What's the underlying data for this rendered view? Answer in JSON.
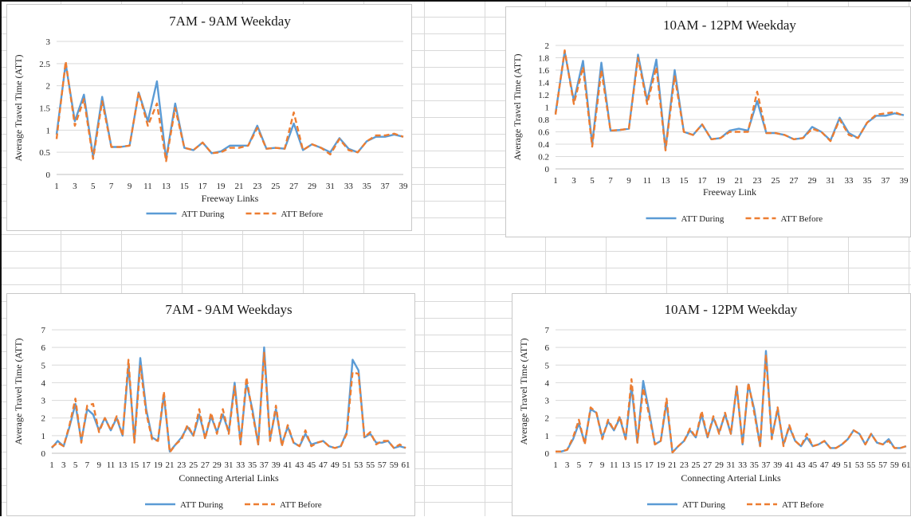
{
  "colors": {
    "during": "#5b9bd5",
    "before": "#ed7d31",
    "grid": "#d9d9d9"
  },
  "chart_data": [
    {
      "id": "c1",
      "type": "line",
      "title": "7AM - 9AM Weekday",
      "xlabel": "Freeway Links",
      "ylabel": "Average Travel Time (ATT)",
      "ylim": [
        0,
        3
      ],
      "yticks": [
        "0",
        "0.5",
        "1",
        "1.5",
        "2",
        "2.5",
        "3"
      ],
      "x_tick_labels": [
        "1",
        "3",
        "5",
        "7",
        "9",
        "11",
        "13",
        "15",
        "17",
        "19",
        "21",
        "23",
        "25",
        "27",
        "29",
        "31",
        "33",
        "35",
        "37",
        "39"
      ],
      "legend_position": "bottom",
      "x": [
        1,
        2,
        3,
        4,
        5,
        6,
        7,
        8,
        9,
        10,
        11,
        12,
        13,
        14,
        15,
        16,
        17,
        18,
        19,
        20,
        21,
        22,
        23,
        24,
        25,
        26,
        27,
        28,
        29,
        30,
        31,
        32,
        33,
        34,
        35,
        36,
        37,
        38,
        39
      ],
      "series": [
        {
          "name": "ATT During",
          "style": "solid",
          "values": [
            0.9,
            2.5,
            1.2,
            1.8,
            0.4,
            1.75,
            0.62,
            0.62,
            0.65,
            1.85,
            1.2,
            2.1,
            0.35,
            1.6,
            0.6,
            0.55,
            0.72,
            0.48,
            0.52,
            0.65,
            0.65,
            0.65,
            1.1,
            0.58,
            0.6,
            0.58,
            1.15,
            0.55,
            0.68,
            0.6,
            0.5,
            0.82,
            0.58,
            0.5,
            0.75,
            0.85,
            0.85,
            0.9,
            0.85
          ]
        },
        {
          "name": "ATT Before",
          "style": "dashed",
          "values": [
            0.8,
            2.55,
            1.1,
            1.7,
            0.35,
            1.65,
            0.62,
            0.62,
            0.65,
            1.85,
            1.1,
            1.6,
            0.3,
            1.5,
            0.6,
            0.55,
            0.72,
            0.48,
            0.5,
            0.6,
            0.6,
            0.65,
            1.05,
            0.58,
            0.6,
            0.58,
            1.4,
            0.55,
            0.68,
            0.6,
            0.45,
            0.8,
            0.55,
            0.5,
            0.75,
            0.88,
            0.88,
            0.92,
            0.85
          ]
        }
      ]
    },
    {
      "id": "c2",
      "type": "line",
      "title": "10AM - 12PM Weekday",
      "xlabel": "Freeway Link",
      "ylabel": "Average Travel Time (ATT)",
      "ylim": [
        0,
        2
      ],
      "yticks": [
        "0",
        "0.2",
        "0.4",
        "0.6",
        "0.8",
        "1",
        "1.2",
        "1.4",
        "1.6",
        "1.8",
        "2"
      ],
      "x_tick_labels": [
        "1",
        "3",
        "5",
        "7",
        "9",
        "11",
        "13",
        "15",
        "17",
        "19",
        "21",
        "23",
        "25",
        "27",
        "29",
        "31",
        "33",
        "35",
        "37",
        "39"
      ],
      "legend_position": "bottom",
      "x": [
        1,
        2,
        3,
        4,
        5,
        6,
        7,
        8,
        9,
        10,
        11,
        12,
        13,
        14,
        15,
        16,
        17,
        18,
        19,
        20,
        21,
        22,
        23,
        24,
        25,
        26,
        27,
        28,
        29,
        30,
        31,
        32,
        33,
        34,
        35,
        36,
        37,
        38,
        39
      ],
      "series": [
        {
          "name": "ATT During",
          "style": "solid",
          "values": [
            0.9,
            1.9,
            1.1,
            1.75,
            0.4,
            1.72,
            0.62,
            0.63,
            0.65,
            1.85,
            1.1,
            1.77,
            0.32,
            1.6,
            0.6,
            0.55,
            0.72,
            0.48,
            0.5,
            0.62,
            0.65,
            0.62,
            1.1,
            0.58,
            0.58,
            0.55,
            0.48,
            0.5,
            0.68,
            0.6,
            0.46,
            0.83,
            0.58,
            0.5,
            0.75,
            0.86,
            0.86,
            0.9,
            0.87
          ]
        },
        {
          "name": "ATT Before",
          "style": "dashed",
          "values": [
            0.88,
            1.92,
            1.05,
            1.65,
            0.36,
            1.6,
            0.62,
            0.63,
            0.65,
            1.8,
            1.05,
            1.65,
            0.3,
            1.5,
            0.6,
            0.55,
            0.72,
            0.48,
            0.5,
            0.6,
            0.6,
            0.6,
            1.25,
            0.58,
            0.58,
            0.55,
            0.48,
            0.5,
            0.65,
            0.6,
            0.45,
            0.8,
            0.55,
            0.5,
            0.75,
            0.88,
            0.9,
            0.92,
            0.86
          ]
        }
      ]
    },
    {
      "id": "c3",
      "type": "line",
      "title": "7AM - 9AM Weekdays",
      "xlabel": "Connecting Arterial Links",
      "ylabel": "Average Travel Time (ATT)",
      "ylim": [
        0,
        7
      ],
      "yticks": [
        "0",
        "1",
        "2",
        "3",
        "4",
        "5",
        "6",
        "7"
      ],
      "x_tick_labels": [
        "1",
        "3",
        "5",
        "7",
        "9",
        "11",
        "13",
        "15",
        "17",
        "19",
        "21",
        "23",
        "25",
        "27",
        "29",
        "31",
        "33",
        "35",
        "37",
        "39",
        "41",
        "43",
        "45",
        "47",
        "49",
        "51",
        "53",
        "55",
        "57",
        "59",
        "61"
      ],
      "legend_position": "bottom",
      "x": [
        1,
        2,
        3,
        4,
        5,
        6,
        7,
        8,
        9,
        10,
        11,
        12,
        13,
        14,
        15,
        16,
        17,
        18,
        19,
        20,
        21,
        22,
        23,
        24,
        25,
        26,
        27,
        28,
        29,
        30,
        31,
        32,
        33,
        34,
        35,
        36,
        37,
        38,
        39,
        40,
        41,
        42,
        43,
        44,
        45,
        46,
        47,
        48,
        49,
        50,
        51,
        52,
        53,
        54,
        55,
        56,
        57,
        58,
        59,
        60,
        61
      ],
      "series": [
        {
          "name": "ATT During",
          "style": "solid",
          "values": [
            0.3,
            0.7,
            0.4,
            1.5,
            2.8,
            0.7,
            2.5,
            2.2,
            1.3,
            2.0,
            1.3,
            2.0,
            1.0,
            5.0,
            0.7,
            5.4,
            2.5,
            0.9,
            0.7,
            3.3,
            0.1,
            0.5,
            0.9,
            1.5,
            1.0,
            2.2,
            0.9,
            2.1,
            1.2,
            2.2,
            1.2,
            4.0,
            0.6,
            4.0,
            2.5,
            0.5,
            6.0,
            0.8,
            2.5,
            0.5,
            1.5,
            0.6,
            0.4,
            1.1,
            0.5,
            0.6,
            0.7,
            0.4,
            0.3,
            0.4,
            1.2,
            5.3,
            4.7,
            0.9,
            1.1,
            0.6,
            0.6,
            0.7,
            0.3,
            0.4,
            0.3
          ]
        },
        {
          "name": "ATT Before",
          "style": "dashed",
          "values": [
            0.35,
            0.6,
            0.4,
            1.6,
            3.1,
            0.6,
            2.7,
            2.8,
            1.2,
            2.0,
            1.3,
            2.1,
            1.0,
            5.3,
            0.6,
            5.0,
            2.3,
            0.8,
            0.7,
            3.5,
            0.05,
            0.5,
            0.8,
            1.6,
            1.0,
            2.5,
            0.8,
            2.3,
            1.1,
            2.5,
            1.1,
            3.8,
            0.5,
            4.3,
            2.3,
            0.5,
            5.7,
            0.7,
            2.7,
            0.4,
            1.6,
            0.6,
            0.4,
            1.3,
            0.4,
            0.6,
            0.7,
            0.4,
            0.3,
            0.4,
            1.1,
            4.6,
            4.5,
            0.9,
            1.2,
            0.5,
            0.7,
            0.7,
            0.3,
            0.5,
            0.3
          ]
        }
      ]
    },
    {
      "id": "c4",
      "type": "line",
      "title": "10AM - 12PM Weekday",
      "xlabel": "Connecting Arterial Links",
      "ylabel": "Average Travel Time (ATT)",
      "ylim": [
        0,
        7
      ],
      "yticks": [
        "0",
        "1",
        "2",
        "3",
        "4",
        "5",
        "6",
        "7"
      ],
      "x_tick_labels": [
        "1",
        "3",
        "5",
        "7",
        "9",
        "11",
        "13",
        "15",
        "17",
        "19",
        "21",
        "23",
        "25",
        "27",
        "29",
        "31",
        "33",
        "35",
        "37",
        "39",
        "41",
        "43",
        "45",
        "47",
        "49",
        "51",
        "53",
        "55",
        "57",
        "59",
        "61"
      ],
      "legend_position": "bottom",
      "x": [
        1,
        2,
        3,
        4,
        5,
        6,
        7,
        8,
        9,
        10,
        11,
        12,
        13,
        14,
        15,
        16,
        17,
        18,
        19,
        20,
        21,
        22,
        23,
        24,
        25,
        26,
        27,
        28,
        29,
        30,
        31,
        32,
        33,
        34,
        35,
        36,
        37,
        38,
        39,
        40,
        41,
        42,
        43,
        44,
        45,
        46,
        47,
        48,
        49,
        50,
        51,
        52,
        53,
        54,
        55,
        56,
        57,
        58,
        59,
        60,
        61
      ],
      "series": [
        {
          "name": "ATT During",
          "style": "solid",
          "values": [
            0.1,
            0.1,
            0.2,
            0.8,
            1.7,
            0.6,
            2.5,
            2.3,
            0.9,
            1.8,
            1.3,
            2.0,
            0.8,
            3.8,
            0.6,
            4.1,
            2.4,
            0.5,
            0.7,
            2.9,
            0.05,
            0.4,
            0.7,
            1.3,
            0.9,
            2.2,
            0.9,
            2.0,
            1.2,
            2.2,
            1.1,
            3.8,
            0.5,
            3.9,
            2.5,
            0.4,
            5.8,
            0.9,
            2.5,
            0.5,
            1.5,
            0.7,
            0.4,
            0.9,
            0.4,
            0.5,
            0.7,
            0.3,
            0.3,
            0.5,
            0.8,
            1.3,
            1.1,
            0.5,
            1.1,
            0.6,
            0.5,
            0.8,
            0.3,
            0.3,
            0.4
          ]
        },
        {
          "name": "ATT Before",
          "style": "dashed",
          "values": [
            0.1,
            0.1,
            0.2,
            0.9,
            1.9,
            0.5,
            2.6,
            2.3,
            0.8,
            1.9,
            1.3,
            2.1,
            0.8,
            4.2,
            0.6,
            3.7,
            2.2,
            0.5,
            0.7,
            3.1,
            0.05,
            0.4,
            0.7,
            1.4,
            0.9,
            2.4,
            0.9,
            2.1,
            1.1,
            2.3,
            1.1,
            3.8,
            0.5,
            4.0,
            2.3,
            0.4,
            5.6,
            0.8,
            2.6,
            0.4,
            1.6,
            0.7,
            0.4,
            1.1,
            0.4,
            0.5,
            0.7,
            0.3,
            0.3,
            0.5,
            0.8,
            1.3,
            1.1,
            0.5,
            1.1,
            0.6,
            0.5,
            0.7,
            0.3,
            0.3,
            0.4
          ]
        }
      ]
    }
  ]
}
